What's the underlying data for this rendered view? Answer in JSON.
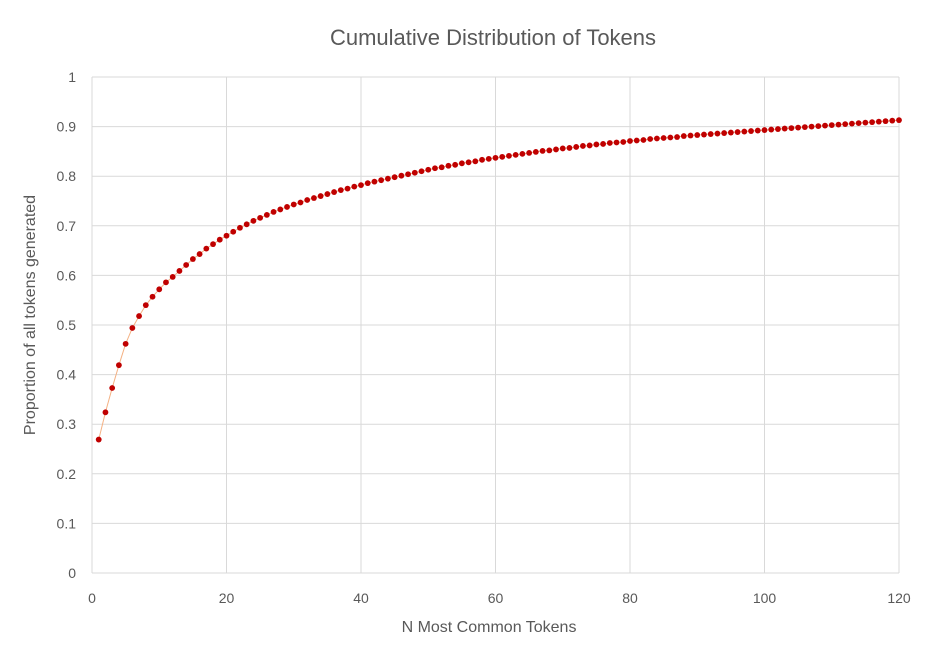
{
  "chart_data": {
    "type": "scatter",
    "title": "Cumulative Distribution of Tokens",
    "xlabel": "N Most Common Tokens",
    "ylabel": "Proportion of all tokens generated",
    "xlim": [
      0,
      120
    ],
    "ylim": [
      0,
      1
    ],
    "x_ticks": [
      0,
      20,
      40,
      60,
      80,
      100,
      120
    ],
    "y_ticks": [
      0,
      0.1,
      0.2,
      0.3,
      0.4,
      0.5,
      0.6,
      0.7,
      0.8,
      0.9,
      1
    ],
    "x_tick_labels": [
      "0",
      "20",
      "40",
      "60",
      "80",
      "100",
      "120"
    ],
    "y_tick_labels": [
      "0",
      "0.1",
      "0.2",
      "0.3",
      "0.4",
      "0.5",
      "0.6",
      "0.7",
      "0.8",
      "0.9",
      "1"
    ],
    "grid": true,
    "legend": "none",
    "colors": {
      "marker": "#c00000",
      "line": "#f4b183",
      "grid": "#d9d9d9",
      "text": "#595959"
    },
    "series": [
      {
        "x": [
          1,
          2,
          3,
          4,
          5,
          6,
          7,
          8,
          9,
          10,
          11,
          12,
          13,
          14,
          15,
          16,
          17,
          18,
          19,
          20,
          21,
          22,
          23,
          24,
          25,
          26,
          27,
          28,
          29,
          30,
          31,
          32,
          33,
          34,
          35,
          36,
          37,
          38,
          39,
          40,
          41,
          42,
          43,
          44,
          45,
          46,
          47,
          48,
          49,
          50,
          51,
          52,
          53,
          54,
          55,
          56,
          57,
          58,
          59,
          60,
          61,
          62,
          63,
          64,
          65,
          66,
          67,
          68,
          69,
          70,
          71,
          72,
          73,
          74,
          75,
          76,
          77,
          78,
          79,
          80,
          81,
          82,
          83,
          84,
          85,
          86,
          87,
          88,
          89,
          90,
          91,
          92,
          93,
          94,
          95,
          96,
          97,
          98,
          99,
          100,
          101,
          102,
          103,
          104,
          105,
          106,
          107,
          108,
          109,
          110,
          111,
          112,
          113,
          114,
          115,
          116,
          117,
          118,
          119,
          120
        ],
        "y": [
          0.269,
          0.324,
          0.373,
          0.419,
          0.462,
          0.494,
          0.518,
          0.54,
          0.557,
          0.572,
          0.586,
          0.597,
          0.609,
          0.621,
          0.633,
          0.643,
          0.654,
          0.663,
          0.672,
          0.68,
          0.688,
          0.696,
          0.703,
          0.71,
          0.716,
          0.722,
          0.728,
          0.733,
          0.738,
          0.743,
          0.747,
          0.752,
          0.756,
          0.76,
          0.764,
          0.768,
          0.772,
          0.775,
          0.779,
          0.782,
          0.786,
          0.789,
          0.792,
          0.795,
          0.798,
          0.801,
          0.804,
          0.807,
          0.81,
          0.813,
          0.816,
          0.818,
          0.821,
          0.823,
          0.826,
          0.828,
          0.83,
          0.833,
          0.835,
          0.837,
          0.839,
          0.841,
          0.843,
          0.845,
          0.847,
          0.849,
          0.851,
          0.852,
          0.854,
          0.856,
          0.857,
          0.859,
          0.861,
          0.862,
          0.864,
          0.865,
          0.867,
          0.868,
          0.869,
          0.871,
          0.872,
          0.873,
          0.875,
          0.876,
          0.877,
          0.878,
          0.879,
          0.881,
          0.882,
          0.883,
          0.884,
          0.885,
          0.886,
          0.887,
          0.888,
          0.889,
          0.89,
          0.891,
          0.892,
          0.893,
          0.894,
          0.895,
          0.896,
          0.897,
          0.898,
          0.899,
          0.9,
          0.901,
          0.902,
          0.903,
          0.904,
          0.905,
          0.906,
          0.907,
          0.908,
          0.909,
          0.91,
          0.911,
          0.912,
          0.913
        ]
      }
    ]
  }
}
